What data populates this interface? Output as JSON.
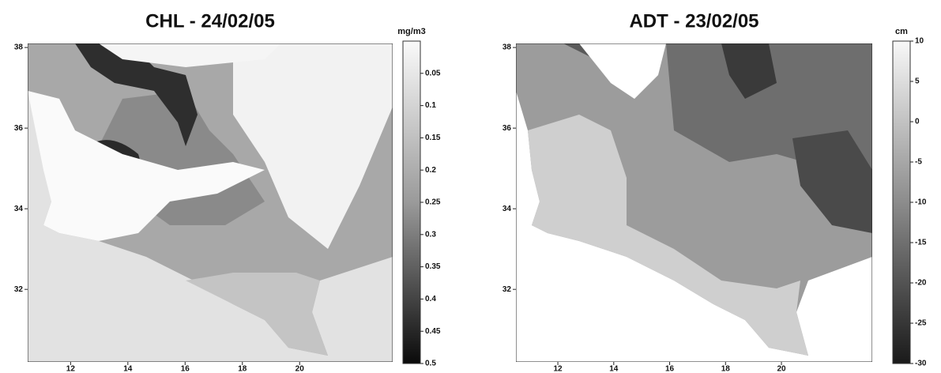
{
  "panels": [
    {
      "title": "CHL - 24/02/05",
      "unit": "mg/m3",
      "xlim": [
        10.5,
        23.25
      ],
      "ylim": [
        30.2,
        38.1
      ],
      "xticks": [
        12,
        14,
        16,
        18,
        20
      ],
      "yticks": [
        32,
        34,
        36,
        38
      ],
      "colorbar": {
        "lim": [
          0,
          0.5
        ],
        "ticks": [
          0.05,
          0.1,
          0.15,
          0.2,
          0.25,
          0.3,
          0.35,
          0.4,
          0.45,
          0.5
        ]
      }
    },
    {
      "title": "ADT - 23/02/05",
      "unit": "cm",
      "xlim": [
        10.5,
        23.25
      ],
      "ylim": [
        30.2,
        38.1
      ],
      "xticks": [
        12,
        14,
        16,
        18,
        20
      ],
      "yticks": [
        32,
        34,
        36,
        38
      ],
      "colorbar": {
        "lim": [
          10,
          -30
        ],
        "ticks": [
          10,
          5,
          0,
          -5,
          -10,
          -15,
          -20,
          -25,
          -30
        ]
      }
    }
  ]
}
